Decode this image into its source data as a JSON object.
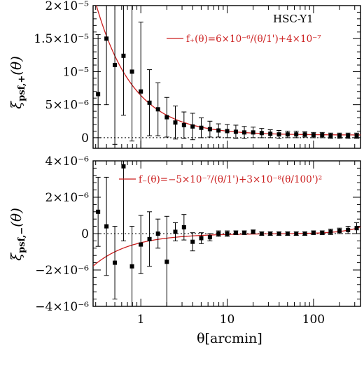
{
  "colors": {
    "data": "#000000",
    "model": "#cc1f1f",
    "zero_line": "#000000"
  },
  "chart_data": [
    {
      "type": "scatter",
      "panel": "top",
      "ylabel": "ξ_psf,+(θ)",
      "ylabel_main": "ξ",
      "ylabel_sub": "psf,+",
      "ylabel_tail": "(θ)",
      "xlabel": "θ[arcmin]",
      "xscale": "log",
      "xlim": [
        0.28,
        350
      ],
      "ylim": [
        -1.6e-06,
        2e-05
      ],
      "yticks": [
        0,
        5e-06,
        1e-05,
        1.5e-05,
        2e-05
      ],
      "yticklabels": [
        "0",
        "5×10⁻⁶",
        "10⁻⁵",
        "1.5×10⁻⁵",
        "2×10⁻⁵"
      ],
      "zero_line": true,
      "survey_label": "HSC-Y1",
      "model_label": "f₊(θ)=6×10⁻⁶/(θ/1')+4×10⁻⁷",
      "model": {
        "type": "inverse",
        "a": 6e-06,
        "b": 4e-07
      },
      "series": [
        {
          "x": [
            0.32,
            0.4,
            0.5,
            0.63,
            0.79,
            1.0,
            1.26,
            1.58,
            2.0,
            2.51,
            3.16,
            3.98,
            5.01,
            6.31,
            7.94,
            10.0,
            12.6,
            15.8,
            20.0,
            25.1,
            31.6,
            39.8,
            50.1,
            63.1,
            79.4,
            100,
            126,
            158,
            200,
            251,
            316
          ],
          "y": [
            6.6e-06,
            1.5e-05,
            1.1e-05,
            1.24e-05,
            1e-05,
            7e-06,
            5.3e-06,
            4.3e-06,
            3.1e-06,
            2.3e-06,
            1.9e-06,
            1.7e-06,
            1.5e-06,
            1.3e-06,
            1.1e-06,
            1e-06,
            9e-07,
            8e-07,
            8e-07,
            7e-07,
            6e-07,
            5e-07,
            5e-07,
            5e-07,
            5e-07,
            4e-07,
            4e-07,
            3e-07,
            3e-07,
            3e-07,
            3e-07
          ],
          "yerr": [
            9e-06,
            1e-05,
            1.2e-05,
            9e-06,
            1.05e-05,
            1.05e-05,
            5e-06,
            4e-06,
            3e-06,
            2.5e-06,
            2e-06,
            2e-06,
            1.5e-06,
            1.2e-06,
            1e-06,
            1e-06,
            1e-06,
            9e-07,
            8e-07,
            7e-07,
            6e-07,
            6e-07,
            5e-07,
            5e-07,
            4e-07,
            4e-07,
            4e-07,
            4e-07,
            4e-07,
            4e-07,
            4e-07
          ]
        }
      ]
    },
    {
      "type": "scatter",
      "panel": "bottom",
      "ylabel": "ξ_psf,−(θ)",
      "ylabel_main": "ξ",
      "ylabel_sub": "psf,−",
      "ylabel_tail": "(θ)",
      "xlabel": "θ[arcmin]",
      "xscale": "log",
      "xlim": [
        0.28,
        350
      ],
      "ylim": [
        -4e-06,
        4e-06
      ],
      "xticks": [
        1,
        10,
        100
      ],
      "xticklabels": [
        "1",
        "10",
        "100"
      ],
      "yticks": [
        -4e-06,
        -2e-06,
        0,
        2e-06,
        4e-06
      ],
      "yticklabels": [
        "−4×10⁻⁶",
        "−2×10⁻⁶",
        "0",
        "2×10⁻⁶",
        "4×10⁻⁶"
      ],
      "zero_line": true,
      "model_label": "f₋(θ)=−5×10⁻⁷/(θ/1')+3×10⁻⁸(θ/100')²",
      "model": {
        "type": "inverse_plus_quadratic",
        "a": -5e-07,
        "c": 3e-08
      },
      "series": [
        {
          "x": [
            0.32,
            0.4,
            0.5,
            0.63,
            0.79,
            1.0,
            1.26,
            1.58,
            2.0,
            2.51,
            3.16,
            3.98,
            5.01,
            6.31,
            7.94,
            10.0,
            12.6,
            15.8,
            20.0,
            25.1,
            31.6,
            39.8,
            50.1,
            63.1,
            79.4,
            100,
            126,
            158,
            200,
            251,
            316
          ],
          "y": [
            1.2e-06,
            4e-07,
            -1.6e-06,
            3.7e-06,
            -1.8e-06,
            -6e-07,
            -3e-07,
            0.0,
            -1.55e-06,
            1e-07,
            3.5e-07,
            -4.5e-07,
            -2.5e-07,
            -2e-07,
            0.0,
            0.0,
            5e-08,
            5e-08,
            1e-07,
            0.0,
            0.0,
            0.0,
            0.0,
            0.0,
            0.0,
            5e-08,
            5e-08,
            1e-07,
            1.5e-07,
            2e-07,
            3e-07
          ],
          "yerr": [
            1.9e-06,
            2.7e-06,
            2e-06,
            4.1e-06,
            2.2e-06,
            1.6e-06,
            1.5e-06,
            8e-07,
            2.5e-06,
            5e-07,
            7e-07,
            5e-07,
            3e-07,
            2e-07,
            1.5e-07,
            1.5e-07,
            1e-07,
            1e-07,
            1e-07,
            1e-07,
            1e-07,
            1e-07,
            1e-07,
            1e-07,
            1e-07,
            1e-07,
            1e-07,
            1.5e-07,
            1.5e-07,
            2e-07,
            3e-07
          ]
        }
      ]
    }
  ]
}
